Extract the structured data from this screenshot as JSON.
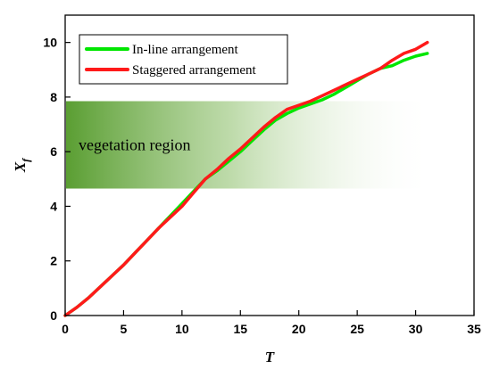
{
  "chart_data": {
    "type": "line",
    "xlabel": "T",
    "ylabel_base": "X",
    "ylabel_sub": "f",
    "xlim": [
      0,
      35
    ],
    "ylim": [
      0,
      11
    ],
    "x_ticks": [
      0,
      5,
      10,
      15,
      20,
      25,
      30,
      35
    ],
    "y_ticks": [
      0,
      2,
      4,
      6,
      8,
      10
    ],
    "grid": false,
    "legend_position": "top-left",
    "series": [
      {
        "name": "In-line arrangement",
        "color": "#00e600",
        "x": [
          0,
          1,
          2,
          3,
          4,
          5,
          6,
          7,
          8,
          9,
          10,
          11,
          12,
          13,
          14,
          15,
          16,
          17,
          18,
          19,
          20,
          21,
          22,
          23,
          24,
          25,
          26,
          27,
          28,
          29,
          30,
          31
        ],
        "y": [
          0,
          0.3,
          0.65,
          1.05,
          1.45,
          1.85,
          2.3,
          2.75,
          3.2,
          3.65,
          4.1,
          4.55,
          5.0,
          5.3,
          5.65,
          6.0,
          6.4,
          6.8,
          7.15,
          7.4,
          7.6,
          7.75,
          7.9,
          8.1,
          8.35,
          8.6,
          8.85,
          9.05,
          9.15,
          9.35,
          9.5,
          9.6
        ]
      },
      {
        "name": "Staggered arrangement",
        "color": "#ff1a1a",
        "x": [
          0,
          1,
          2,
          3,
          4,
          5,
          6,
          7,
          8,
          9,
          10,
          11,
          12,
          13,
          14,
          15,
          16,
          17,
          18,
          19,
          20,
          21,
          22,
          23,
          24,
          25,
          26,
          27,
          28,
          29,
          30,
          31
        ],
        "y": [
          0,
          0.3,
          0.65,
          1.05,
          1.45,
          1.85,
          2.3,
          2.75,
          3.2,
          3.6,
          4.0,
          4.5,
          5.0,
          5.35,
          5.75,
          6.1,
          6.5,
          6.9,
          7.25,
          7.55,
          7.7,
          7.85,
          8.05,
          8.25,
          8.45,
          8.65,
          8.85,
          9.05,
          9.35,
          9.6,
          9.75,
          10.0
        ]
      }
    ],
    "annotations": [
      {
        "text": "vegetation region",
        "kind": "shaded-band",
        "x_range": [
          0,
          31.5
        ],
        "y_range": [
          4.65,
          7.85
        ],
        "color": "#5a9e32"
      }
    ]
  }
}
